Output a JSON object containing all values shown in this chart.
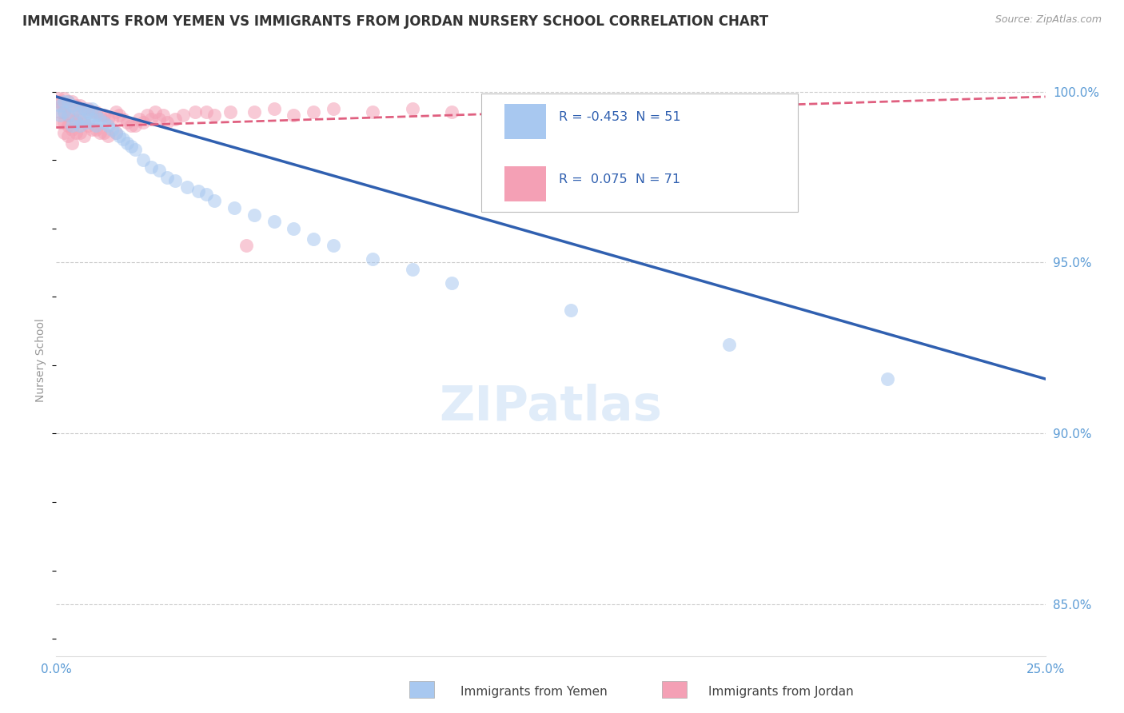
{
  "title": "IMMIGRANTS FROM YEMEN VS IMMIGRANTS FROM JORDAN NURSERY SCHOOL CORRELATION CHART",
  "source": "Source: ZipAtlas.com",
  "ylabel": "Nursery School",
  "xmin": 0.0,
  "xmax": 0.25,
  "ymin": 0.835,
  "ymax": 1.008,
  "legend_yemen_R": "-0.453",
  "legend_yemen_N": "51",
  "legend_jordan_R": "0.075",
  "legend_jordan_N": "71",
  "yemen_color": "#a8c8f0",
  "jordan_color": "#f4a0b5",
  "trendline_yemen_color": "#3060b0",
  "trendline_jordan_color": "#e06080",
  "background_color": "#ffffff",
  "grid_color": "#cccccc",
  "title_color": "#333333",
  "axis_label_color": "#5b9bd5",
  "watermark": "ZIPatlas",
  "yemen_scatter_x": [
    0.001,
    0.001,
    0.002,
    0.002,
    0.003,
    0.003,
    0.004,
    0.004,
    0.005,
    0.005,
    0.006,
    0.006,
    0.007,
    0.007,
    0.008,
    0.008,
    0.009,
    0.009,
    0.01,
    0.01,
    0.011,
    0.012,
    0.013,
    0.014,
    0.015,
    0.016,
    0.017,
    0.018,
    0.019,
    0.02,
    0.022,
    0.024,
    0.026,
    0.028,
    0.03,
    0.033,
    0.036,
    0.038,
    0.04,
    0.045,
    0.05,
    0.055,
    0.06,
    0.065,
    0.07,
    0.08,
    0.09,
    0.1,
    0.13,
    0.17,
    0.21
  ],
  "yemen_scatter_y": [
    0.996,
    0.993,
    0.997,
    0.994,
    0.997,
    0.993,
    0.996,
    0.99,
    0.995,
    0.991,
    0.994,
    0.99,
    0.995,
    0.992,
    0.994,
    0.991,
    0.995,
    0.992,
    0.993,
    0.99,
    0.992,
    0.991,
    0.99,
    0.989,
    0.988,
    0.987,
    0.986,
    0.985,
    0.984,
    0.983,
    0.98,
    0.978,
    0.977,
    0.975,
    0.974,
    0.972,
    0.971,
    0.97,
    0.968,
    0.966,
    0.964,
    0.962,
    0.96,
    0.957,
    0.955,
    0.951,
    0.948,
    0.944,
    0.936,
    0.926,
    0.916
  ],
  "jordan_scatter_x": [
    0.0005,
    0.001,
    0.001,
    0.001,
    0.0015,
    0.002,
    0.002,
    0.002,
    0.002,
    0.003,
    0.003,
    0.003,
    0.003,
    0.004,
    0.004,
    0.004,
    0.004,
    0.005,
    0.005,
    0.005,
    0.006,
    0.006,
    0.006,
    0.007,
    0.007,
    0.007,
    0.008,
    0.008,
    0.009,
    0.009,
    0.01,
    0.01,
    0.011,
    0.011,
    0.012,
    0.012,
    0.013,
    0.013,
    0.014,
    0.015,
    0.015,
    0.016,
    0.017,
    0.018,
    0.019,
    0.02,
    0.021,
    0.022,
    0.023,
    0.024,
    0.025,
    0.026,
    0.027,
    0.028,
    0.03,
    0.032,
    0.035,
    0.038,
    0.04,
    0.044,
    0.048,
    0.05,
    0.055,
    0.06,
    0.065,
    0.07,
    0.08,
    0.09,
    0.1,
    0.13,
    0.16
  ],
  "jordan_scatter_y": [
    0.998,
    0.997,
    0.994,
    0.991,
    0.996,
    0.998,
    0.994,
    0.991,
    0.988,
    0.997,
    0.993,
    0.99,
    0.987,
    0.997,
    0.993,
    0.989,
    0.985,
    0.996,
    0.992,
    0.988,
    0.996,
    0.992,
    0.988,
    0.995,
    0.991,
    0.987,
    0.995,
    0.99,
    0.994,
    0.989,
    0.994,
    0.989,
    0.993,
    0.988,
    0.993,
    0.988,
    0.992,
    0.987,
    0.992,
    0.994,
    0.988,
    0.993,
    0.992,
    0.991,
    0.99,
    0.99,
    0.992,
    0.991,
    0.993,
    0.992,
    0.994,
    0.992,
    0.993,
    0.991,
    0.992,
    0.993,
    0.994,
    0.994,
    0.993,
    0.994,
    0.955,
    0.994,
    0.995,
    0.993,
    0.994,
    0.995,
    0.994,
    0.995,
    0.994,
    0.995,
    0.996
  ],
  "yemen_trend_x": [
    0.0,
    0.25
  ],
  "yemen_trend_y": [
    0.9985,
    0.916
  ],
  "jordan_trend_x": [
    0.0,
    0.25
  ],
  "jordan_trend_y": [
    0.9895,
    0.9985
  ]
}
